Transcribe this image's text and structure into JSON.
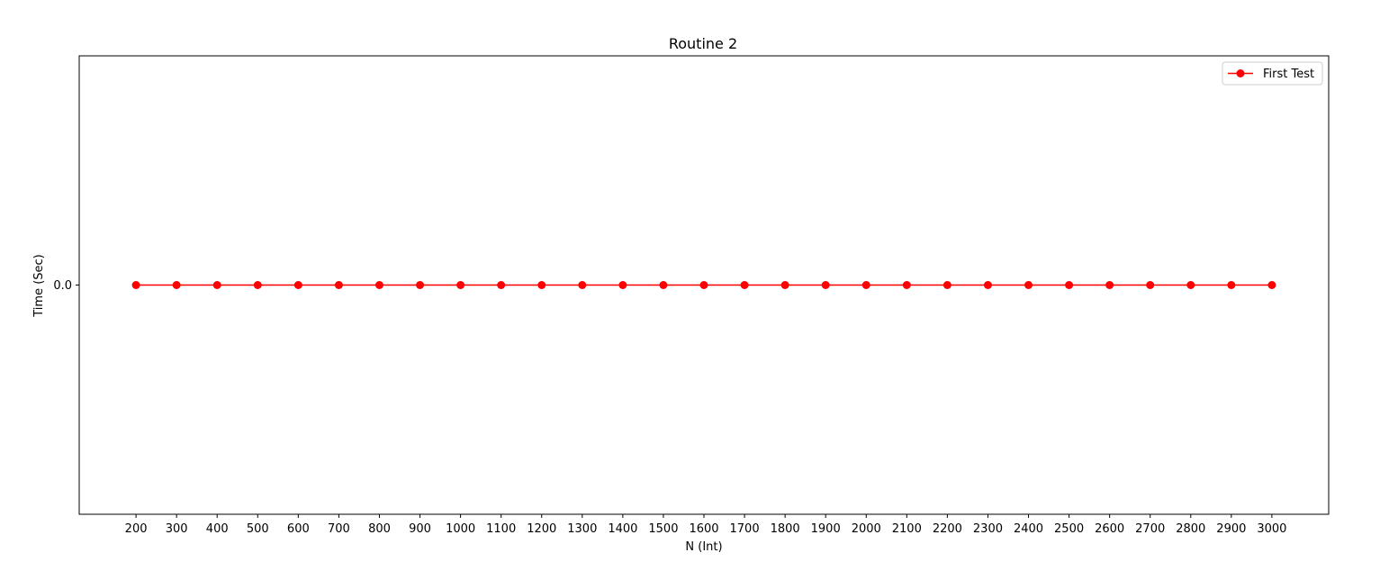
{
  "chart_data": {
    "type": "line",
    "title": "Routine 2",
    "xlabel": "N (Int)",
    "ylabel": "Time (Sec)",
    "x": [
      200,
      300,
      400,
      500,
      600,
      700,
      800,
      900,
      1000,
      1100,
      1200,
      1300,
      1400,
      1500,
      1600,
      1700,
      1800,
      1900,
      2000,
      2100,
      2200,
      2300,
      2400,
      2500,
      2600,
      2700,
      2800,
      2900,
      3000
    ],
    "x_tick_labels": [
      "200",
      "300",
      "400",
      "500",
      "600",
      "700",
      "800",
      "900",
      "1000",
      "1100",
      "1200",
      "1300",
      "1400",
      "1500",
      "1600",
      "1700",
      "1800",
      "1900",
      "2000",
      "2100",
      "2200",
      "2300",
      "2400",
      "2500",
      "2600",
      "2700",
      "2800",
      "2900",
      "3000"
    ],
    "y_ticks": [
      0.0
    ],
    "y_tick_labels": [
      "0.0"
    ],
    "xlim": [
      60,
      3140
    ],
    "ylim": [
      -0.055,
      0.055
    ],
    "grid": false,
    "legend_position": "top-right",
    "series": [
      {
        "name": "First Test",
        "color": "#ff0000",
        "marker": "circle",
        "values": [
          0.0,
          0.0,
          0.0,
          0.0,
          0.0,
          0.0,
          0.0,
          0.0,
          0.0,
          0.0,
          0.0,
          0.0,
          0.0,
          0.0,
          0.0,
          0.0,
          0.0,
          0.0,
          0.0,
          0.0,
          0.0,
          0.0,
          0.0,
          0.0,
          0.0,
          0.0,
          0.0,
          0.0,
          0.0
        ]
      }
    ]
  }
}
